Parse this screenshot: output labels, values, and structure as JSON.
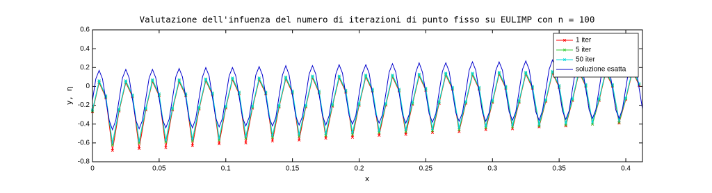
{
  "chart_data": {
    "type": "line",
    "title": "Valutazione dell'infuenza del numero di iterazioni di punto fisso su EULIMP con n = 100",
    "x_label": "x",
    "y_label": "y, η",
    "xlim": [
      0,
      0.4125
    ],
    "ylim": [
      -0.8,
      0.6
    ],
    "xticks": [
      0,
      0.05,
      0.1,
      0.15,
      0.2,
      0.25,
      0.3,
      0.35,
      0.4
    ],
    "yticks": [
      -0.8,
      -0.6,
      -0.4,
      -0.2,
      0,
      0.2,
      0.4,
      0.6
    ],
    "grid": false,
    "legend": "upper right",
    "x": [
      0,
      0.005,
      0.01,
      0.015,
      0.02,
      0.025,
      0.03,
      0.035,
      0.04,
      0.045,
      0.05,
      0.055,
      0.06,
      0.065,
      0.07,
      0.075,
      0.08,
      0.085,
      0.09,
      0.095,
      0.1,
      0.105,
      0.11,
      0.115,
      0.12,
      0.125,
      0.13,
      0.135,
      0.14,
      0.145,
      0.15,
      0.155,
      0.16,
      0.165,
      0.17,
      0.175,
      0.18,
      0.185,
      0.19,
      0.195,
      0.2,
      0.205,
      0.21,
      0.215,
      0.22,
      0.225,
      0.23,
      0.235,
      0.24,
      0.245,
      0.25,
      0.255,
      0.26,
      0.265,
      0.27,
      0.275,
      0.28,
      0.285,
      0.29,
      0.295,
      0.3,
      0.305,
      0.31,
      0.315,
      0.32,
      0.325,
      0.33,
      0.335,
      0.34,
      0.345,
      0.35,
      0.355,
      0.36,
      0.365,
      0.37,
      0.375,
      0.38,
      0.385,
      0.39,
      0.395,
      0.4,
      0.405,
      0.41
    ],
    "series": [
      {
        "name": "1 iter",
        "color": "#ff0000",
        "markers": true,
        "values": [
          -0.27,
          0.04,
          -0.12,
          -0.68,
          -0.26,
          0.04,
          -0.11,
          -0.66,
          -0.25,
          0.05,
          -0.1,
          -0.65,
          -0.25,
          0.05,
          -0.1,
          -0.63,
          -0.24,
          0.06,
          -0.09,
          -0.61,
          -0.23,
          0.07,
          -0.08,
          -0.6,
          -0.23,
          0.07,
          -0.08,
          -0.58,
          -0.22,
          0.08,
          -0.07,
          -0.57,
          -0.22,
          0.09,
          -0.07,
          -0.55,
          -0.21,
          0.09,
          -0.06,
          -0.54,
          -0.2,
          0.1,
          -0.05,
          -0.52,
          -0.2,
          0.1,
          -0.05,
          -0.51,
          -0.19,
          0.11,
          -0.04,
          -0.49,
          -0.18,
          0.12,
          -0.03,
          -0.48,
          -0.18,
          0.12,
          -0.03,
          -0.46,
          -0.17,
          0.13,
          -0.02,
          -0.45,
          -0.17,
          0.13,
          -0.02,
          -0.43,
          -0.16,
          0.14,
          -0.01,
          -0.42,
          -0.15,
          0.15,
          0,
          -0.4,
          -0.15,
          0.15,
          0,
          -0.39,
          -0.14,
          0.16,
          0.01
        ]
      },
      {
        "name": "5 iter",
        "color": "#33cc33",
        "markers": true,
        "values": [
          -0.26,
          0.05,
          -0.11,
          -0.62,
          -0.25,
          0.05,
          -0.1,
          -0.6,
          -0.24,
          0.06,
          -0.09,
          -0.59,
          -0.24,
          0.06,
          -0.09,
          -0.58,
          -0.23,
          0.07,
          -0.08,
          -0.57,
          -0.22,
          0.08,
          -0.07,
          -0.55,
          -0.22,
          0.08,
          -0.07,
          -0.54,
          -0.21,
          0.09,
          -0.06,
          -0.53,
          -0.21,
          0.1,
          -0.06,
          -0.52,
          -0.2,
          0.1,
          -0.05,
          -0.51,
          -0.19,
          0.11,
          -0.04,
          -0.49,
          -0.19,
          0.11,
          -0.04,
          -0.48,
          -0.18,
          0.12,
          -0.03,
          -0.47,
          -0.17,
          0.13,
          -0.02,
          -0.46,
          -0.17,
          0.13,
          -0.02,
          -0.44,
          -0.16,
          0.14,
          -0.01,
          -0.43,
          -0.16,
          0.14,
          -0.01,
          -0.42,
          -0.15,
          0.15,
          0,
          -0.41,
          -0.14,
          0.16,
          0.01,
          -0.4,
          -0.14,
          0.16,
          0.01,
          -0.38,
          -0.13,
          0.17,
          0.02
        ]
      },
      {
        "name": "50 iter",
        "color": "#00d8d8",
        "markers": true,
        "values": [
          -0.25,
          0.06,
          -0.1,
          -0.6,
          -0.24,
          0.06,
          -0.09,
          -0.58,
          -0.23,
          0.07,
          -0.08,
          -0.57,
          -0.23,
          0.07,
          -0.08,
          -0.56,
          -0.22,
          0.08,
          -0.07,
          -0.55,
          -0.21,
          0.09,
          -0.06,
          -0.53,
          -0.21,
          0.09,
          -0.06,
          -0.52,
          -0.2,
          0.1,
          -0.05,
          -0.51,
          -0.2,
          0.11,
          -0.05,
          -0.5,
          -0.19,
          0.11,
          -0.04,
          -0.49,
          -0.18,
          0.12,
          -0.03,
          -0.47,
          -0.18,
          0.12,
          -0.03,
          -0.46,
          -0.17,
          0.13,
          -0.02,
          -0.45,
          -0.16,
          0.14,
          -0.01,
          -0.44,
          -0.16,
          0.14,
          -0.01,
          -0.42,
          -0.15,
          0.15,
          0,
          -0.41,
          -0.15,
          0.15,
          0,
          -0.4,
          -0.14,
          0.16,
          0.01,
          -0.39,
          -0.13,
          0.17,
          0.02,
          -0.38,
          -0.13,
          0.17,
          0.02,
          -0.36,
          -0.12,
          0.18,
          0.03
        ]
      },
      {
        "name": "soluzione esatta",
        "color": "#0000cc",
        "markers": false,
        "x": [
          0,
          0.0025,
          0.005,
          0.0075,
          0.01,
          0.0125,
          0.015,
          0.0175,
          0.02,
          0.0225,
          0.025,
          0.0275,
          0.03,
          0.0325,
          0.035,
          0.0375,
          0.04,
          0.0425,
          0.045,
          0.0475,
          0.05,
          0.0525,
          0.055,
          0.0575,
          0.06,
          0.0625,
          0.065,
          0.0675,
          0.07,
          0.0725,
          0.075,
          0.0775,
          0.08,
          0.0825,
          0.085,
          0.0875,
          0.09,
          0.0925,
          0.095,
          0.0975,
          0.1,
          0.1025,
          0.105,
          0.1075,
          0.11,
          0.1125,
          0.115,
          0.1175,
          0.12,
          0.1225,
          0.125,
          0.1275,
          0.13,
          0.1325,
          0.135,
          0.1375,
          0.14,
          0.1425,
          0.145,
          0.1475,
          0.15,
          0.1525,
          0.155,
          0.1575,
          0.16,
          0.1625,
          0.165,
          0.1675,
          0.17,
          0.1725,
          0.175,
          0.1775,
          0.18,
          0.1825,
          0.185,
          0.1875,
          0.19,
          0.1925,
          0.195,
          0.1975,
          0.2,
          0.2025,
          0.205,
          0.2075,
          0.21,
          0.2125,
          0.215,
          0.2175,
          0.22,
          0.2225,
          0.225,
          0.2275,
          0.23,
          0.2325,
          0.235,
          0.2375,
          0.24,
          0.2425,
          0.245,
          0.2475,
          0.25,
          0.2525,
          0.255,
          0.2575,
          0.26,
          0.2625,
          0.265,
          0.2675,
          0.27,
          0.2725,
          0.275,
          0.2775,
          0.28,
          0.2825,
          0.285,
          0.2875,
          0.29,
          0.2925,
          0.295,
          0.2975,
          0.3,
          0.3025,
          0.305,
          0.3075,
          0.31,
          0.3125,
          0.315,
          0.3175,
          0.32,
          0.3225,
          0.325,
          0.3275,
          0.33,
          0.3325,
          0.335,
          0.3375,
          0.34,
          0.3425,
          0.345,
          0.3475,
          0.35,
          0.3525,
          0.355,
          0.3575,
          0.36,
          0.3625,
          0.365,
          0.3675,
          0.37,
          0.3725,
          0.375,
          0.3775,
          0.38,
          0.3825,
          0.385,
          0.3875,
          0.39,
          0.3925,
          0.395,
          0.3975,
          0.4,
          0.4025,
          0.405,
          0.4075,
          0.41,
          0.4125
        ],
        "values": [
          -0.15,
          0.08,
          0.17,
          0.08,
          -0.14,
          -0.36,
          -0.46,
          -0.36,
          -0.14,
          0.09,
          0.18,
          0.09,
          -0.14,
          -0.36,
          -0.45,
          -0.36,
          -0.13,
          0.09,
          0.18,
          0.09,
          -0.13,
          -0.35,
          -0.44,
          -0.35,
          -0.13,
          0.1,
          0.19,
          0.1,
          -0.12,
          -0.35,
          -0.44,
          -0.34,
          -0.12,
          0.1,
          0.2,
          0.11,
          -0.12,
          -0.34,
          -0.43,
          -0.34,
          -0.11,
          0.11,
          0.2,
          0.11,
          -0.11,
          -0.33,
          -0.42,
          -0.33,
          -0.11,
          0.12,
          0.21,
          0.12,
          -0.1,
          -0.33,
          -0.42,
          -0.33,
          -0.1,
          0.12,
          0.22,
          0.12,
          -0.1,
          -0.32,
          -0.41,
          -0.32,
          -0.1,
          0.13,
          0.22,
          0.13,
          -0.09,
          -0.31,
          -0.41,
          -0.31,
          -0.09,
          0.13,
          0.23,
          0.14,
          -0.09,
          -0.31,
          -0.4,
          -0.31,
          -0.08,
          0.14,
          0.23,
          0.14,
          -0.08,
          -0.3,
          -0.39,
          -0.3,
          -0.08,
          0.15,
          0.24,
          0.15,
          -0.07,
          -0.3,
          -0.39,
          -0.3,
          -0.07,
          0.15,
          0.25,
          0.15,
          -0.07,
          -0.29,
          -0.38,
          -0.29,
          -0.06,
          0.16,
          0.25,
          0.16,
          -0.06,
          -0.28,
          -0.37,
          -0.28,
          -0.06,
          0.17,
          0.26,
          0.17,
          -0.06,
          -0.28,
          -0.37,
          -0.28,
          -0.05,
          0.17,
          0.26,
          0.17,
          -0.05,
          -0.27,
          -0.36,
          -0.27,
          -0.05,
          0.18,
          0.27,
          0.18,
          -0.04,
          -0.27,
          -0.36,
          -0.26,
          -0.04,
          0.18,
          0.28,
          0.19,
          -0.04,
          -0.26,
          -0.35,
          -0.26,
          -0.03,
          0.19,
          0.28,
          0.19,
          -0.03,
          -0.25,
          -0.34,
          -0.25,
          -0.03,
          0.2,
          0.29,
          0.2,
          -0.02,
          -0.25,
          -0.34,
          -0.24,
          -0.02,
          0.2,
          0.3,
          0.21,
          -0.02,
          -0.24
        ]
      }
    ]
  }
}
